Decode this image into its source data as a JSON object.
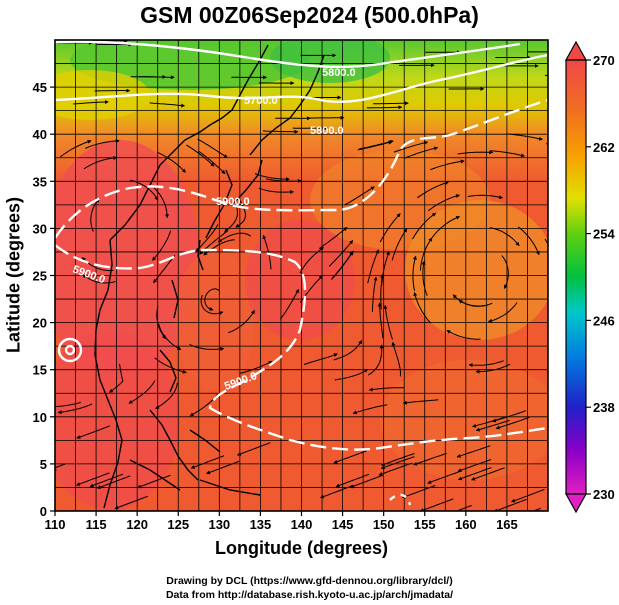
{
  "figure": {
    "title": "GSM 00Z06Sep2024 (500.0hPa)",
    "credit_line1": "Drawing by DCL (https://www.gfd-dennou.org/library/dcl/)",
    "credit_line2": "Data from http://database.rish.kyoto-u.ac.jp/arch/jmadata/"
  },
  "chart_data": {
    "type": "heatmap",
    "title": "GSM 00Z06Sep2024 (500.0hPa)",
    "xlabel": "Longitude (degrees)",
    "ylabel": "Latitude  (degrees)",
    "xlim": [
      110,
      170
    ],
    "ylim": [
      0,
      50
    ],
    "x_ticks": [
      "110",
      "115",
      "120",
      "125",
      "130",
      "135",
      "140",
      "145",
      "150",
      "155",
      "160",
      "165"
    ],
    "y_ticks": [
      "0",
      "5",
      "10",
      "15",
      "20",
      "25",
      "30",
      "35",
      "40",
      "45"
    ],
    "grid": true,
    "colorbar": {
      "label_ticks": [
        "270",
        "262",
        "254",
        "246",
        "238",
        "230"
      ],
      "range": [
        230,
        270
      ],
      "colors": [
        "#e020c0",
        "#8a00c8",
        "#2020c8",
        "#0080e0",
        "#00c8c8",
        "#00c040",
        "#60d010",
        "#e0e000",
        "#f8a000",
        "#f07020",
        "#f04848"
      ]
    },
    "contour_labels": [
      "5700.0",
      "5800.0",
      "5800.0",
      "5900.0",
      "5900.0",
      "5900.0"
    ],
    "field_colors": {
      "green_north": "#58c830",
      "yellow": "#e0d000",
      "orange": "#f08a28",
      "red_orange": "#f05a30",
      "pink_red": "#f05050"
    }
  }
}
